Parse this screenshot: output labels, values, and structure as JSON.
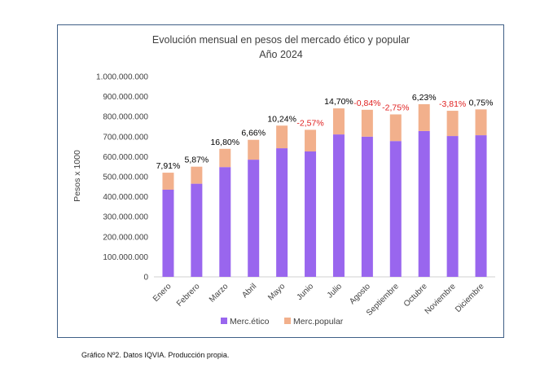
{
  "chart_data": {
    "type": "bar",
    "stacked": true,
    "title": "Evolución mensual en pesos del mercado ético y popular",
    "subtitle": "Año 2024",
    "ylabel": "Pesos x 1000",
    "xlabel": "",
    "ylim": [
      0,
      1000000000
    ],
    "yticks": [
      "0",
      "100.000.000",
      "200.000.000",
      "300.000.000",
      "400.000.000",
      "500.000.000",
      "600.000.000",
      "700.000.000",
      "800.000.000",
      "900.000.000",
      "1.000.000.000"
    ],
    "categories": [
      "Enero",
      "Febrero",
      "Marzo",
      "Abril",
      "Mayo",
      "Junio",
      "Julio",
      "Agosto",
      "Septiembre",
      "Octubre",
      "Noviembre",
      "Diciembre"
    ],
    "series": [
      {
        "name": "Merc.ético",
        "color": "#9966ee",
        "values": [
          435000000,
          465000000,
          548000000,
          585000000,
          642000000,
          626000000,
          711000000,
          700000000,
          678000000,
          728000000,
          703000000,
          707000000
        ]
      },
      {
        "name": "Merc.popular",
        "color": "#f2b08c",
        "values": [
          85000000,
          85000000,
          91000000,
          99000000,
          113000000,
          108000000,
          130000000,
          134000000,
          133000000,
          134000000,
          126000000,
          129000000
        ]
      }
    ],
    "data_labels": [
      "7,91%",
      "5,87%",
      "16,80%",
      "6,66%",
      "10,24%",
      "-2,57%",
      "14,70%",
      "-0,84%",
      "-2,75%",
      "6,23%",
      "-3,81%",
      "0,75%"
    ],
    "data_label_colors": {
      "positive": "#000000",
      "negative": "#e02020"
    },
    "legend_position": "bottom",
    "grid": false
  },
  "caption": "Gráfico Nº2. Datos IQVIA. Producción propia."
}
